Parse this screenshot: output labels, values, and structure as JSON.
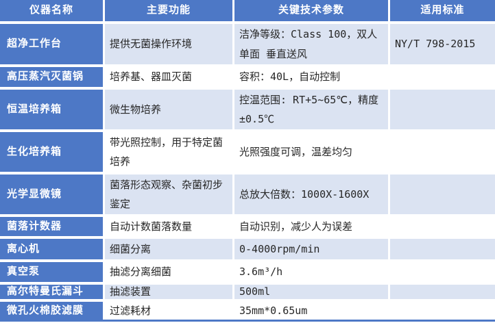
{
  "colors": {
    "header_blue": "#4d78c6",
    "band_blue": "#dbe3f2",
    "band_white": "#ffffff",
    "header_text": "#ffffff",
    "body_text": "#262626"
  },
  "table": {
    "columns": [
      {
        "label": "仪器名称"
      },
      {
        "label": "主要功能"
      },
      {
        "label": "关键技术参数"
      },
      {
        "label": "适用标准"
      }
    ],
    "rows": [
      {
        "name": "超净工作台",
        "function": "提供无菌操作环境",
        "parameters": "洁净等级：Class 100，双人单面 垂直送风",
        "standard": "NY/T 798-2015"
      },
      {
        "name": "高压蒸汽灭菌锅",
        "function": "培养基、器皿灭菌",
        "parameters": "容积：40L，自动控制",
        "standard": ""
      },
      {
        "name": "恒温培养箱",
        "function": "微生物培养",
        "parameters": "控温范围: RT+5~65℃，精度±0.5℃",
        "standard": ""
      },
      {
        "name": "生化培养箱",
        "function": "带光照控制，用于特定菌培养",
        "parameters": "光照强度可调，温差均匀",
        "standard": ""
      },
      {
        "name": "光学显微镜",
        "function": "菌落形态观察、杂菌初步鉴定",
        "parameters": "总放大倍数：1000X-1600X",
        "standard": ""
      },
      {
        "name": "菌落计数器",
        "function": "自动计数菌落数量",
        "parameters": "自动识别，减少人为误差",
        "standard": ""
      },
      {
        "name": "离心机",
        "function": "细菌分离",
        "parameters": "0-4000rpm/min",
        "standard": ""
      },
      {
        "name": "真空泵",
        "function": "抽滤分离细菌",
        "parameters": "3.6m³/h",
        "standard": ""
      },
      {
        "name": "高尔特曼氏漏斗",
        "function": "抽滤装置",
        "parameters": "500ml",
        "standard": ""
      },
      {
        "name": "微孔火棉胶滤膜",
        "function": "过滤耗材",
        "parameters": "35mm*0.65um",
        "standard": ""
      }
    ]
  }
}
